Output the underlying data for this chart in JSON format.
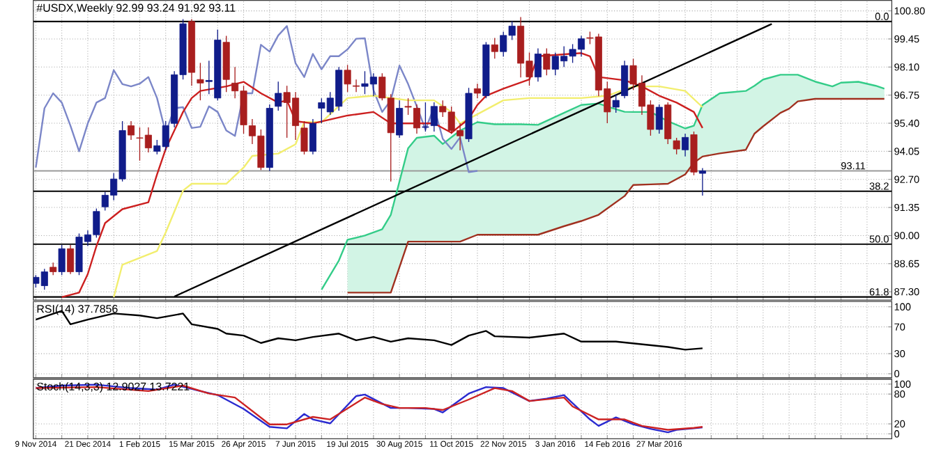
{
  "chart_data": [
    {
      "type": "candlestick",
      "title": "#USDX,Weekly 92.99 93.24 91.92 93.11",
      "x": [
        "2014-11-09",
        "2014-11-16",
        "2014-11-23",
        "2014-11-30",
        "2014-12-07",
        "2014-12-14",
        "2014-12-21",
        "2014-12-28",
        "2015-01-04",
        "2015-01-11",
        "2015-01-18",
        "2015-01-25",
        "2015-02-01",
        "2015-02-08",
        "2015-02-15",
        "2015-02-22",
        "2015-03-01",
        "2015-03-08",
        "2015-03-15",
        "2015-03-22",
        "2015-03-29",
        "2015-04-05",
        "2015-04-12",
        "2015-04-19",
        "2015-04-26",
        "2015-05-03",
        "2015-05-10",
        "2015-05-17",
        "2015-05-24",
        "2015-05-31",
        "2015-06-07",
        "2015-06-14",
        "2015-06-21",
        "2015-06-28",
        "2015-07-05",
        "2015-07-12",
        "2015-07-19",
        "2015-07-26",
        "2015-08-02",
        "2015-08-09",
        "2015-08-16",
        "2015-08-23",
        "2015-08-30",
        "2015-09-06",
        "2015-09-13",
        "2015-09-20",
        "2015-09-27",
        "2015-10-04",
        "2015-10-11",
        "2015-10-18",
        "2015-10-25",
        "2015-11-01",
        "2015-11-08",
        "2015-11-15",
        "2015-11-22",
        "2015-11-29",
        "2015-12-06",
        "2015-12-13",
        "2015-12-20",
        "2015-12-27",
        "2016-01-03",
        "2016-01-10",
        "2016-01-17",
        "2016-01-24",
        "2016-01-31",
        "2016-02-07",
        "2016-02-14",
        "2016-02-21",
        "2016-02-28",
        "2016-03-06",
        "2016-03-13",
        "2016-03-20",
        "2016-03-27",
        "2016-04-03",
        "2016-04-10",
        "2016-04-17",
        "2016-04-24",
        "2016-05-01"
      ],
      "ohlc": [
        [
          87.7,
          88.1,
          87.5,
          88.0
        ],
        [
          87.59,
          88.4,
          87.4,
          88.26
        ],
        [
          88.48,
          88.7,
          88.1,
          88.26
        ],
        [
          88.26,
          89.55,
          88.1,
          89.37
        ],
        [
          89.37,
          89.55,
          88.15,
          88.26
        ],
        [
          88.26,
          90.1,
          88.1,
          89.93
        ],
        [
          89.71,
          90.25,
          89.5,
          90.04
        ],
        [
          90.04,
          91.3,
          89.9,
          91.16
        ],
        [
          91.38,
          92.1,
          91.2,
          91.94
        ],
        [
          91.94,
          93.0,
          91.7,
          92.72
        ],
        [
          92.72,
          95.5,
          92.6,
          95.05
        ],
        [
          95.28,
          95.5,
          94.6,
          94.83
        ],
        [
          94.7,
          95.2,
          93.6,
          94.68
        ],
        [
          94.83,
          95.2,
          94.0,
          94.21
        ],
        [
          94.05,
          94.6,
          93.9,
          94.32
        ],
        [
          94.27,
          95.5,
          94.1,
          95.28
        ],
        [
          95.39,
          97.9,
          95.2,
          97.73
        ],
        [
          97.73,
          100.4,
          97.5,
          100.18
        ],
        [
          100.29,
          100.4,
          97.2,
          97.84
        ],
        [
          97.5,
          98.3,
          96.5,
          97.33
        ],
        [
          97.4,
          98.4,
          96.8,
          97.46
        ],
        [
          96.61,
          99.9,
          96.5,
          99.4
        ],
        [
          99.29,
          99.6,
          96.9,
          97.5
        ],
        [
          97.33,
          98.1,
          96.6,
          96.95
        ],
        [
          96.95,
          97.2,
          94.9,
          95.32
        ],
        [
          95.28,
          95.6,
          94.4,
          94.79
        ],
        [
          94.79,
          95.1,
          93.15,
          93.27
        ],
        [
          93.27,
          96.3,
          93.1,
          96.12
        ],
        [
          96.21,
          97.4,
          96.0,
          96.84
        ],
        [
          96.88,
          97.2,
          94.7,
          96.39
        ],
        [
          96.61,
          96.9,
          94.6,
          95.28
        ],
        [
          95.17,
          95.5,
          93.9,
          94.05
        ],
        [
          94.05,
          95.6,
          93.9,
          95.39
        ],
        [
          96.12,
          96.6,
          95.4,
          96.39
        ],
        [
          95.94,
          96.9,
          95.8,
          96.61
        ],
        [
          96.21,
          98.1,
          96.0,
          97.95
        ],
        [
          97.95,
          98.2,
          96.9,
          97.28
        ],
        [
          97.2,
          97.5,
          96.9,
          97.17
        ],
        [
          97.17,
          97.9,
          96.8,
          97.3
        ],
        [
          97.28,
          97.8,
          96.7,
          97.62
        ],
        [
          97.62,
          97.8,
          96.5,
          96.61
        ],
        [
          96.61,
          96.8,
          92.6,
          94.94
        ],
        [
          94.83,
          96.5,
          94.7,
          96.12
        ],
        [
          96.21,
          96.6,
          95.8,
          96.17
        ],
        [
          96.12,
          96.3,
          94.9,
          95.17
        ],
        [
          95.2,
          96.4,
          95.0,
          95.23
        ],
        [
          95.28,
          96.4,
          95.0,
          96.21
        ],
        [
          96.21,
          96.5,
          95.7,
          95.94
        ],
        [
          95.94,
          96.2,
          94.9,
          95.05
        ],
        [
          95.05,
          95.4,
          94.1,
          94.79
        ],
        [
          94.65,
          97.1,
          94.5,
          96.84
        ],
        [
          97.06,
          97.3,
          96.6,
          96.84
        ],
        [
          96.72,
          99.3,
          96.6,
          99.17
        ],
        [
          99.17,
          99.5,
          98.5,
          98.84
        ],
        [
          98.84,
          99.8,
          98.6,
          99.62
        ],
        [
          99.62,
          100.3,
          99.4,
          100.07
        ],
        [
          100.07,
          100.5,
          97.6,
          98.28
        ],
        [
          98.39,
          98.8,
          97.2,
          97.62
        ],
        [
          97.62,
          99.0,
          97.4,
          98.73
        ],
        [
          98.73,
          99.0,
          97.7,
          97.99
        ],
        [
          97.99,
          98.8,
          97.7,
          98.62
        ],
        [
          98.39,
          99.1,
          98.1,
          98.62
        ],
        [
          98.62,
          99.2,
          98.3,
          98.95
        ],
        [
          98.95,
          99.6,
          98.6,
          99.46
        ],
        [
          99.51,
          99.8,
          99.2,
          99.48
        ],
        [
          99.55,
          99.7,
          96.7,
          96.99
        ],
        [
          97.06,
          97.4,
          95.4,
          95.94
        ],
        [
          96.17,
          96.8,
          95.9,
          96.5
        ],
        [
          96.72,
          98.4,
          96.6,
          98.17
        ],
        [
          98.17,
          98.5,
          97.0,
          97.28
        ],
        [
          97.33,
          97.7,
          95.8,
          96.21
        ],
        [
          96.28,
          96.5,
          94.8,
          95.1
        ],
        [
          95.1,
          96.3,
          94.9,
          96.17
        ],
        [
          96.28,
          96.4,
          94.4,
          94.65
        ],
        [
          94.56,
          94.7,
          93.9,
          94.16
        ],
        [
          94.12,
          94.9,
          93.8,
          94.72
        ],
        [
          94.85,
          95.0,
          92.9,
          93.05
        ],
        [
          92.99,
          93.24,
          91.92,
          93.11
        ]
      ],
      "colors": [
        "#101c8a",
        "#101c8a",
        "#a81e1e",
        "#101c8a",
        "#a81e1e",
        "#101c8a",
        "#101c8a",
        "#101c8a",
        "#101c8a",
        "#101c8a",
        "#101c8a",
        "#a81e1e",
        "#a81e1e",
        "#a81e1e",
        "#101c8a",
        "#101c8a",
        "#101c8a",
        "#101c8a",
        "#a81e1e",
        "#a81e1e",
        "#101c8a",
        "#101c8a",
        "#a81e1e",
        "#a81e1e",
        "#a81e1e",
        "#a81e1e",
        "#a81e1e",
        "#101c8a",
        "#101c8a",
        "#a81e1e",
        "#a81e1e",
        "#a81e1e",
        "#101c8a",
        "#101c8a",
        "#101c8a",
        "#101c8a",
        "#a81e1e",
        "#a81e1e",
        "#101c8a",
        "#101c8a",
        "#a81e1e",
        "#a81e1e",
        "#101c8a",
        "#a81e1e",
        "#a81e1e",
        "#101c8a",
        "#101c8a",
        "#a81e1e",
        "#a81e1e",
        "#a81e1e",
        "#101c8a",
        "#a81e1e",
        "#101c8a",
        "#a81e1e",
        "#101c8a",
        "#101c8a",
        "#a81e1e",
        "#a81e1e",
        "#101c8a",
        "#a81e1e",
        "#101c8a",
        "#101c8a",
        "#101c8a",
        "#101c8a",
        "#a81e1e",
        "#a81e1e",
        "#a81e1e",
        "#101c8a",
        "#101c8a",
        "#a81e1e",
        "#a81e1e",
        "#a81e1e",
        "#101c8a",
        "#a81e1e",
        "#a81e1e",
        "#101c8a",
        "#a81e1e",
        "#101c8a"
      ],
      "series": [
        {
          "type": "line",
          "color": "#33cc88",
          "x": [
            "2015-06-28",
            "2015-07-12",
            "2015-07-19",
            "2015-08-02",
            "2015-08-16",
            "2015-08-23",
            "2015-09-06",
            "2015-09-13",
            "2015-09-27",
            "2015-10-04",
            "2015-10-18",
            "2015-11-01",
            "2015-11-15",
            "2015-12-06",
            "2015-12-20",
            "2016-01-10",
            "2016-01-24",
            "2016-02-07",
            "2016-02-14",
            "2016-02-28",
            "2016-03-06",
            "2016-03-20",
            "2016-04-03",
            "2016-04-17",
            "2016-04-24",
            "2016-05-01",
            "2016-05-15",
            "2016-06-05",
            "2016-06-12",
            "2016-06-19",
            "2016-07-03",
            "2016-07-17",
            "2016-07-31",
            "2016-08-14",
            "2016-08-21",
            "2016-09-04",
            "2016-09-18",
            "2016-09-25"
          ],
          "values": [
            87.4,
            88.8,
            89.8,
            90.0,
            90.3,
            91.0,
            94.2,
            94.7,
            94.8,
            94.4,
            95.05,
            95.45,
            95.35,
            95.35,
            95.32,
            95.9,
            96.28,
            96.35,
            96.2,
            95.95,
            95.94,
            95.94,
            95.5,
            95.15,
            95.28,
            96.28,
            96.84,
            96.95,
            97.2,
            97.5,
            97.73,
            97.73,
            97.4,
            97.17,
            97.35,
            97.39,
            97.2,
            97.06
          ],
          "upper": [
            null,
            null,
            89.8,
            90.0,
            90.3,
            91.0,
            94.2,
            94.7,
            94.8,
            94.4,
            95.05,
            95.45,
            95.35,
            95.35,
            95.32,
            95.9,
            96.28,
            96.35,
            96.2,
            95.95,
            95.94,
            95.94,
            95.5,
            95.15,
            95.28,
            96.28,
            96.84,
            96.95,
            97.2,
            97.5,
            97.73,
            97.73,
            97.4,
            97.17,
            97.35,
            97.39,
            97.2,
            97.06
          ],
          "lower": [
            null,
            null,
            87.26,
            87.26,
            87.26,
            87.26,
            89.71,
            89.71,
            89.71,
            89.71,
            89.71,
            90.04,
            90.04,
            90.04,
            90.04,
            90.45,
            90.7,
            91.0,
            91.3,
            91.9,
            92.43,
            92.46,
            92.49,
            92.94,
            93.5,
            93.8,
            93.95,
            94.12,
            94.9,
            95.25,
            95.9,
            96.45,
            96.57,
            96.57,
            96.57,
            96.57,
            96.57,
            96.57
          ]
        },
        {
          "type": "line",
          "color": "#a0301f",
          "x": [
            "2015-07-19",
            "2015-08-02",
            "2015-08-16",
            "2015-08-23",
            "2015-09-06",
            "2015-09-13",
            "2015-09-27",
            "2015-10-04",
            "2015-10-18",
            "2015-11-01",
            "2015-11-15",
            "2015-12-06",
            "2015-12-20",
            "2016-01-10",
            "2016-01-24",
            "2016-02-07",
            "2016-02-14",
            "2016-02-28",
            "2016-03-06",
            "2016-03-20",
            "2016-04-03",
            "2016-04-17",
            "2016-04-24",
            "2016-05-01",
            "2016-05-15",
            "2016-06-05",
            "2016-06-12",
            "2016-06-19",
            "2016-07-03",
            "2016-07-10",
            "2016-07-17",
            "2016-07-31",
            "2016-08-14",
            "2016-08-21",
            "2016-09-04",
            "2016-09-18",
            "2016-09-25"
          ],
          "values": [
            87.26,
            87.26,
            87.26,
            87.26,
            89.71,
            89.71,
            89.71,
            89.71,
            89.71,
            90.04,
            90.04,
            90.04,
            90.04,
            90.45,
            90.7,
            91.0,
            91.3,
            91.9,
            92.43,
            92.46,
            92.49,
            92.94,
            93.5,
            93.8,
            93.95,
            94.12,
            94.9,
            95.25,
            95.9,
            96.1,
            96.45,
            96.57,
            96.57,
            96.57,
            96.57,
            96.57,
            96.57
          ]
        },
        {
          "type": "line",
          "color": "#7b86c8",
          "x": [
            "2014-11-09",
            "2014-11-16",
            "2014-11-23",
            "2014-11-30",
            "2014-12-07",
            "2014-12-14",
            "2014-12-21",
            "2014-12-28",
            "2015-01-04",
            "2015-01-11",
            "2015-01-18",
            "2015-01-25",
            "2015-02-01",
            "2015-02-08",
            "2015-02-15",
            "2015-02-22",
            "2015-03-01",
            "2015-03-08",
            "2015-03-15",
            "2015-03-22",
            "2015-03-29",
            "2015-04-05",
            "2015-04-12",
            "2015-04-19",
            "2015-04-26",
            "2015-05-03",
            "2015-05-10",
            "2015-05-17",
            "2015-05-24",
            "2015-05-31",
            "2015-06-07",
            "2015-06-14",
            "2015-06-21",
            "2015-06-28",
            "2015-07-05",
            "2015-07-12",
            "2015-07-19",
            "2015-07-26",
            "2015-08-02",
            "2015-08-09",
            "2015-08-16",
            "2015-08-23",
            "2015-08-30",
            "2015-09-06",
            "2015-09-13",
            "2015-09-20",
            "2015-09-27",
            "2015-10-04",
            "2015-10-11",
            "2015-10-18",
            "2015-10-25",
            "2015-11-01"
          ],
          "values": [
            93.27,
            96.12,
            96.84,
            96.39,
            95.28,
            94.05,
            95.39,
            96.39,
            96.61,
            97.95,
            97.28,
            97.17,
            97.3,
            97.62,
            96.61,
            94.94,
            96.12,
            96.17,
            95.17,
            95.23,
            96.21,
            95.94,
            95.05,
            94.79,
            96.84,
            96.84,
            99.17,
            98.84,
            99.62,
            100.07,
            98.28,
            97.62,
            98.73,
            97.99,
            98.62,
            98.62,
            98.95,
            99.46,
            99.48,
            96.99,
            95.94,
            96.5,
            98.17,
            97.28,
            96.21,
            95.1,
            96.17,
            94.65,
            94.16,
            94.72,
            93.05,
            93.11
          ]
        },
        {
          "type": "line",
          "color": "#f2ee6e",
          "x": [
            "2015-01-11",
            "2015-01-18",
            "2015-02-15",
            "2015-02-22",
            "2015-03-08",
            "2015-03-15",
            "2015-04-12",
            "2015-04-26",
            "2015-05-03",
            "2015-05-24",
            "2015-06-07",
            "2015-06-14",
            "2015-06-28",
            "2015-07-19",
            "2015-08-09",
            "2015-09-06",
            "2015-09-27",
            "2015-10-11",
            "2015-10-18",
            "2015-11-01",
            "2015-11-22",
            "2015-12-13",
            "2016-01-24",
            "2016-02-14",
            "2016-03-06",
            "2016-03-27",
            "2016-04-17",
            "2016-05-01"
          ],
          "values": [
            87.04,
            88.6,
            89.26,
            90.15,
            92.16,
            92.49,
            92.49,
            93.27,
            93.83,
            93.94,
            94.39,
            95.45,
            95.45,
            96.61,
            96.72,
            96.5,
            96.5,
            95.94,
            95.39,
            95.83,
            96.5,
            96.61,
            96.61,
            96.72,
            97.17,
            97.17,
            96.95,
            96.17
          ]
        },
        {
          "type": "line",
          "color": "#cc1f1f",
          "x": [
            "2014-11-30",
            "2014-12-14",
            "2014-12-21",
            "2014-12-28",
            "2015-01-04",
            "2015-01-18",
            "2015-02-08",
            "2015-02-15",
            "2015-02-22",
            "2015-03-08",
            "2015-03-15",
            "2015-03-22",
            "2015-04-12",
            "2015-04-26",
            "2015-05-10",
            "2015-05-24",
            "2015-05-31",
            "2015-06-07",
            "2015-06-21",
            "2015-07-19",
            "2015-08-09",
            "2015-08-23",
            "2015-09-27",
            "2015-10-11",
            "2015-10-25",
            "2015-11-01",
            "2015-11-08",
            "2015-11-22",
            "2015-12-13",
            "2015-12-20",
            "2016-01-24",
            "2016-01-31",
            "2016-02-07",
            "2016-02-28",
            "2016-03-13",
            "2016-03-27",
            "2016-04-10",
            "2016-04-24",
            "2016-05-01"
          ],
          "values": [
            87.04,
            87.26,
            88.15,
            89.49,
            90.6,
            91.27,
            91.6,
            92.94,
            94.16,
            95.94,
            96.61,
            96.95,
            97.17,
            97.39,
            96.84,
            96.39,
            96.5,
            95.5,
            95.39,
            95.77,
            95.94,
            95.39,
            95.39,
            94.94,
            95.61,
            96.28,
            96.72,
            97.06,
            97.5,
            98.62,
            98.77,
            98.62,
            97.62,
            97.46,
            97.17,
            96.72,
            96.39,
            95.94,
            95.17
          ]
        },
        {
          "type": "line",
          "color": "#000000",
          "x": [
            "2015-03-01",
            "2016-06-26"
          ],
          "values": [
            87.07,
            100.17
          ]
        }
      ],
      "ref_lines": [
        {
          "axis": "y",
          "value": 100.29,
          "color": "#000000"
        },
        {
          "axis": "y",
          "value": 93.11,
          "label": "93.11",
          "color": "#9a9a9a"
        },
        {
          "axis": "y",
          "value": 92.13,
          "color": "#000000"
        },
        {
          "axis": "y",
          "value": 89.59,
          "color": "#000000"
        },
        {
          "axis": "y",
          "value": 87.05,
          "color": "#000000"
        }
      ],
      "annotations": [
        {
          "text": "0.0",
          "x": "2016-09-30",
          "y": 100.29
        },
        {
          "text": "38.2",
          "x": "2016-09-30",
          "y": 92.13
        },
        {
          "text": "50.0",
          "x": "2016-09-30",
          "y": 89.59
        },
        {
          "text": "61.8",
          "x": "2016-09-30",
          "y": 87.05
        }
      ],
      "xlim": [
        "2014-11-07",
        "2016-10-01"
      ],
      "ylim": [
        86.9,
        101.3
      ],
      "xticks": [
        {
          "value": "2014-11-09",
          "label": null
        },
        {
          "value": "2014-11-30",
          "label": null
        },
        {
          "value": "2014-12-21",
          "label": null
        },
        {
          "value": "2015-01-11",
          "label": null
        },
        {
          "value": "2015-02-01",
          "label": null
        },
        {
          "value": "2015-02-22",
          "label": null
        },
        {
          "value": "2015-03-15",
          "label": null
        },
        {
          "value": "2015-04-05",
          "label": null
        },
        {
          "value": "2015-04-26",
          "label": null
        },
        {
          "value": "2015-05-17",
          "label": null
        },
        {
          "value": "2015-06-07",
          "label": null
        },
        {
          "value": "2015-06-28",
          "label": null
        },
        {
          "value": "2015-07-19",
          "label": null
        },
        {
          "value": "2015-08-09",
          "label": null
        },
        {
          "value": "2015-08-30",
          "label": null
        },
        {
          "value": "2015-09-20",
          "label": null
        },
        {
          "value": "2015-10-11",
          "label": null
        },
        {
          "value": "2015-11-01",
          "label": null
        },
        {
          "value": "2015-11-22",
          "label": null
        },
        {
          "value": "2015-12-13",
          "label": null
        },
        {
          "value": "2016-01-03",
          "label": null
        },
        {
          "value": "2016-01-24",
          "label": null
        },
        {
          "value": "2016-02-14",
          "label": null
        },
        {
          "value": "2016-03-06",
          "label": null
        },
        {
          "value": "2016-03-27",
          "label": null
        },
        {
          "value": "2016-04-17",
          "label": null
        },
        {
          "value": "2016-05-08",
          "label": null
        },
        {
          "value": "2016-05-29",
          "label": null
        },
        {
          "value": "2016-06-19",
          "label": null
        },
        {
          "value": "2016-07-10",
          "label": null
        },
        {
          "value": "2016-07-31",
          "label": null
        },
        {
          "value": "2016-08-21",
          "label": null
        },
        {
          "value": "2016-09-11",
          "label": null
        }
      ],
      "yticks": [
        {
          "value": 100.8,
          "label": "100.80"
        },
        99.45,
        {
          "value": 98.1,
          "label": "98.10"
        },
        96.75,
        {
          "value": 95.4,
          "label": "95.40"
        },
        94.05,
        {
          "value": 92.7,
          "label": "92.70"
        },
        91.35,
        {
          "value": 90,
          "label": "90.00"
        },
        88.65,
        {
          "value": 87.3,
          "label": "87.30"
        }
      ],
      "grid": true,
      "tick_labels": "y"
    },
    {
      "type": "line",
      "title": "RSI(14) 37.7856",
      "series": [
        {
          "color": "#000000",
          "x": [
            "2014-11-09",
            "2014-11-30",
            "2014-12-07",
            "2014-12-21",
            "2015-01-11",
            "2015-02-01",
            "2015-02-15",
            "2015-03-08",
            "2015-03-15",
            "2015-04-05",
            "2015-04-12",
            "2015-04-26",
            "2015-05-10",
            "2015-05-24",
            "2015-06-07",
            "2015-06-21",
            "2015-07-12",
            "2015-07-26",
            "2015-08-09",
            "2015-08-23",
            "2015-09-06",
            "2015-09-27",
            "2015-10-11",
            "2015-10-25",
            "2015-11-08",
            "2015-11-15",
            "2015-12-13",
            "2016-01-10",
            "2016-01-24",
            "2016-02-21",
            "2016-03-13",
            "2016-04-03",
            "2016-04-17",
            "2016-05-01"
          ],
          "values": [
            81,
            94,
            74,
            81,
            90,
            87,
            83,
            90,
            74,
            67,
            60,
            57,
            46,
            53,
            50,
            55,
            60,
            50,
            55,
            48,
            53,
            50,
            43,
            57,
            64,
            56,
            54,
            60,
            48,
            48,
            44,
            40,
            36,
            38
          ]
        }
      ],
      "xlim": [
        "2014-11-07",
        "2016-10-01"
      ],
      "ylim": [
        -6,
        108
      ],
      "xticks": [
        {
          "value": "2014-11-09",
          "label": null
        },
        {
          "value": "2014-11-30",
          "label": null
        },
        {
          "value": "2014-12-21",
          "label": null
        },
        {
          "value": "2015-01-11",
          "label": null
        },
        {
          "value": "2015-02-01",
          "label": null
        },
        {
          "value": "2015-02-22",
          "label": null
        },
        {
          "value": "2015-03-15",
          "label": null
        },
        {
          "value": "2015-04-05",
          "label": null
        },
        {
          "value": "2015-04-26",
          "label": null
        },
        {
          "value": "2015-05-17",
          "label": null
        },
        {
          "value": "2015-06-07",
          "label": null
        },
        {
          "value": "2015-06-28",
          "label": null
        },
        {
          "value": "2015-07-19",
          "label": null
        },
        {
          "value": "2015-08-09",
          "label": null
        },
        {
          "value": "2015-08-30",
          "label": null
        },
        {
          "value": "2015-09-20",
          "label": null
        },
        {
          "value": "2015-10-11",
          "label": null
        },
        {
          "value": "2015-11-01",
          "label": null
        },
        {
          "value": "2015-11-22",
          "label": null
        },
        {
          "value": "2015-12-13",
          "label": null
        },
        {
          "value": "2016-01-03",
          "label": null
        },
        {
          "value": "2016-01-24",
          "label": null
        },
        {
          "value": "2016-02-14",
          "label": null
        },
        {
          "value": "2016-03-06",
          "label": null
        },
        {
          "value": "2016-03-27",
          "label": null
        },
        {
          "value": "2016-04-17",
          "label": null
        },
        {
          "value": "2016-05-08",
          "label": null
        },
        {
          "value": "2016-05-29",
          "label": null
        },
        {
          "value": "2016-06-19",
          "label": null
        },
        {
          "value": "2016-07-10",
          "label": null
        },
        {
          "value": "2016-07-31",
          "label": null
        },
        {
          "value": "2016-08-21",
          "label": null
        },
        {
          "value": "2016-09-11",
          "label": null
        }
      ],
      "yticks": [
        0,
        30,
        70,
        100
      ],
      "grid": true,
      "tick_labels": "y"
    },
    {
      "type": "line",
      "title": "Stoch(14,3,3) 12.9027 13.7221",
      "series": [
        {
          "color": "#2a2ad0",
          "x": [
            "2014-11-09",
            "2014-11-30",
            "2014-12-28",
            "2015-01-25",
            "2015-02-15",
            "2015-03-01",
            "2015-03-22",
            "2015-04-05",
            "2015-04-26",
            "2015-05-17",
            "2015-05-31",
            "2015-06-14",
            "2015-06-21",
            "2015-07-05",
            "2015-07-26",
            "2015-08-02",
            "2015-08-23",
            "2015-09-06",
            "2015-09-27",
            "2015-10-04",
            "2015-10-25",
            "2015-11-08",
            "2015-11-22",
            "2015-12-13",
            "2015-12-27",
            "2016-01-10",
            "2016-01-31",
            "2016-02-07",
            "2016-02-21",
            "2016-03-06",
            "2016-03-20",
            "2016-04-03",
            "2016-04-10",
            "2016-04-24",
            "2016-05-01"
          ],
          "values": [
            92,
            97,
            99,
            92,
            89,
            99,
            86,
            78,
            50,
            14,
            11,
            40,
            29,
            21,
            76,
            79,
            52,
            52,
            50,
            43,
            81,
            94,
            92,
            66,
            71,
            78,
            29,
            16,
            33,
            19,
            10,
            3,
            8,
            11,
            13
          ]
        },
        {
          "color": "#cc2222",
          "x": [
            "2014-11-09",
            "2014-12-28",
            "2015-02-08",
            "2015-03-08",
            "2015-03-29",
            "2015-04-19",
            "2015-05-17",
            "2015-05-31",
            "2015-06-21",
            "2015-07-05",
            "2015-08-02",
            "2015-08-16",
            "2015-08-30",
            "2015-09-20",
            "2015-10-04",
            "2015-10-25",
            "2015-11-15",
            "2015-11-29",
            "2015-12-13",
            "2016-01-10",
            "2016-01-17",
            "2016-02-07",
            "2016-02-28",
            "2016-03-13",
            "2016-04-03",
            "2016-04-24",
            "2016-05-01"
          ],
          "values": [
            92,
            94,
            86,
            97,
            81,
            73,
            19,
            19,
            34,
            29,
            73,
            60,
            52,
            52,
            48,
            69,
            92,
            86,
            66,
            73,
            55,
            29,
            29,
            16,
            8,
            12,
            14
          ]
        }
      ],
      "xlim": [
        "2014-11-07",
        "2016-10-01"
      ],
      "ylim": [
        -10,
        110
      ],
      "xticks": [
        {
          "value": "2014-11-09",
          "label": "9 Nov 2014"
        },
        {
          "value": "2014-11-30",
          "label": null
        },
        {
          "value": "2014-12-21",
          "label": "21 Dec 2014"
        },
        {
          "value": "2015-01-11",
          "label": null
        },
        {
          "value": "2015-02-01",
          "label": "1 Feb 2015"
        },
        {
          "value": "2015-02-22",
          "label": null
        },
        {
          "value": "2015-03-15",
          "label": "15 Mar 2015"
        },
        {
          "value": "2015-04-05",
          "label": null
        },
        {
          "value": "2015-04-26",
          "label": "26 Apr 2015"
        },
        {
          "value": "2015-05-17",
          "label": null
        },
        {
          "value": "2015-06-07",
          "label": "7 Jun 2015"
        },
        {
          "value": "2015-06-28",
          "label": null
        },
        {
          "value": "2015-07-19",
          "label": "19 Jul 2015"
        },
        {
          "value": "2015-08-09",
          "label": null
        },
        {
          "value": "2015-08-30",
          "label": "30 Aug 2015"
        },
        {
          "value": "2015-09-20",
          "label": null
        },
        {
          "value": "2015-10-11",
          "label": "11 Oct 2015"
        },
        {
          "value": "2015-11-01",
          "label": null
        },
        {
          "value": "2015-11-22",
          "label": "22 Nov 2015"
        },
        {
          "value": "2015-12-13",
          "label": null
        },
        {
          "value": "2016-01-03",
          "label": "3 Jan 2016"
        },
        {
          "value": "2016-01-24",
          "label": null
        },
        {
          "value": "2016-02-14",
          "label": "14 Feb 2016"
        },
        {
          "value": "2016-03-06",
          "label": null
        },
        {
          "value": "2016-03-27",
          "label": "27 Mar 2016"
        },
        {
          "value": "2016-04-17",
          "label": null
        },
        {
          "value": "2016-05-08",
          "label": null
        },
        {
          "value": "2016-05-29",
          "label": null
        },
        {
          "value": "2016-06-19",
          "label": null
        },
        {
          "value": "2016-07-10",
          "label": null
        },
        {
          "value": "2016-07-31",
          "label": null
        },
        {
          "value": "2016-08-21",
          "label": null
        },
        {
          "value": "2016-09-11",
          "label": null
        }
      ],
      "yticks": [
        0,
        20,
        80,
        100
      ],
      "grid": true
    }
  ]
}
